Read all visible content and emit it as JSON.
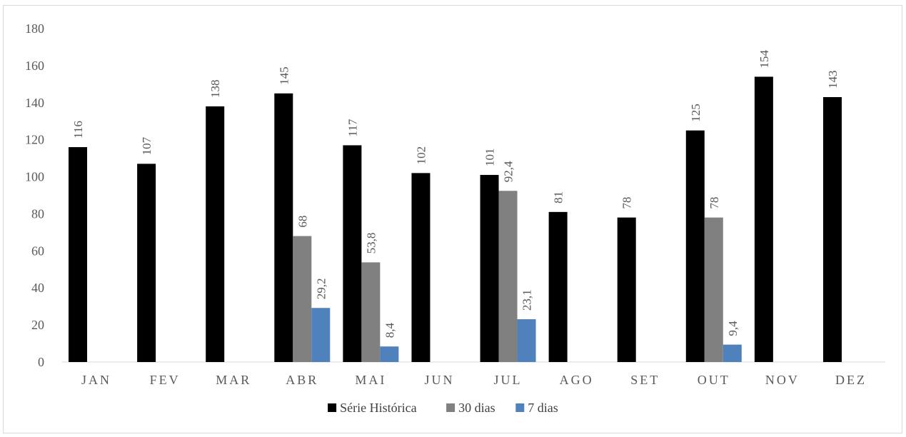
{
  "chart_data": {
    "type": "bar",
    "categories": [
      "JAN",
      "FEV",
      "MAR",
      "ABR",
      "MAI",
      "JUN",
      "JUL",
      "AGO",
      "SET",
      "OUT",
      "NOV",
      "DEZ"
    ],
    "series": [
      {
        "name": "Série Histórica",
        "color": "#000000",
        "values": [
          116,
          107,
          138,
          145,
          117,
          102,
          101,
          81,
          78,
          125,
          154,
          143
        ],
        "labels": [
          "116",
          "107",
          "138",
          "145",
          "117",
          "102",
          "101",
          "81",
          "78",
          "125",
          "154",
          "143"
        ]
      },
      {
        "name": "30 dias",
        "color": "#808080",
        "values": [
          null,
          null,
          null,
          68,
          53.8,
          null,
          92.4,
          null,
          null,
          78,
          null,
          null
        ],
        "labels": [
          null,
          null,
          null,
          "68",
          "53,8",
          null,
          "92,4",
          null,
          null,
          "78",
          null,
          null
        ]
      },
      {
        "name": "7 dias",
        "color": "#4f81bd",
        "values": [
          null,
          null,
          null,
          29.2,
          8.4,
          null,
          23.1,
          null,
          null,
          9.4,
          null,
          null
        ],
        "labels": [
          null,
          null,
          null,
          "29,2",
          "8,4",
          null,
          "23,1",
          null,
          null,
          "9,4",
          null,
          null
        ]
      }
    ],
    "ylim": [
      0,
      180
    ],
    "yticks": [
      "0",
      "20",
      "40",
      "60",
      "80",
      "100",
      "120",
      "140",
      "160",
      "180"
    ],
    "grid": false,
    "legend_position": "bottom",
    "data_label_rotation": "vertical"
  }
}
